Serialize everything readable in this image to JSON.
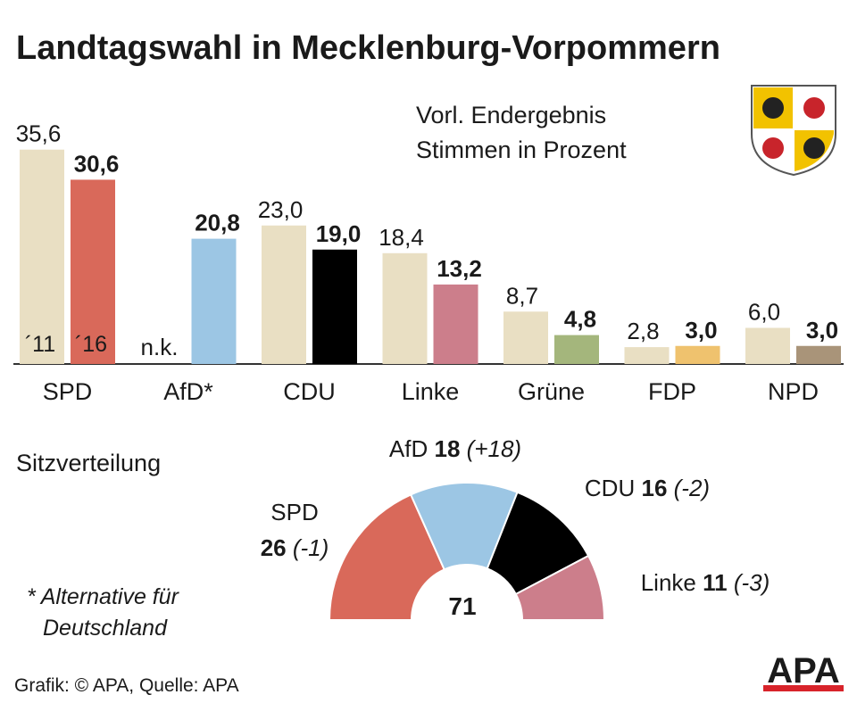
{
  "chart_data": [
    {
      "type": "bar",
      "title": "Landtagswahl in Mecklenburg-Vorpommern",
      "subtitle": [
        "Vorl. Endergebnis",
        "Stimmen in Prozent"
      ],
      "categories": [
        "SPD",
        "AfD*",
        "CDU",
        "Linke",
        "Grüne",
        "FDP",
        "NPD"
      ],
      "ylim": [
        0,
        36
      ],
      "series": [
        {
          "name": "´11",
          "color": "#e9dfc3",
          "values": [
            35.6,
            null,
            23.0,
            18.4,
            8.7,
            2.8,
            6.0
          ],
          "value_labels": [
            "35,6",
            "n.k.",
            "23,0",
            "18,4",
            "8,7",
            "2,8",
            "6,0"
          ]
        },
        {
          "name": "´16",
          "colors": [
            "#d9695a",
            "#9cc6e4",
            "#000000",
            "#cc7e8b",
            "#a4b67c",
            "#efc26e",
            "#a99479"
          ],
          "values": [
            30.6,
            20.8,
            19.0,
            13.2,
            4.8,
            3.0,
            3.0
          ],
          "value_labels": [
            "30,6",
            "20,8",
            "19,0",
            "13,2",
            "4,8",
            "3,0",
            "3,0"
          ]
        }
      ]
    },
    {
      "type": "pie",
      "title": "Sitzverteilung",
      "half": true,
      "total": 71,
      "categories": [
        "SPD",
        "AfD",
        "CDU",
        "Linke"
      ],
      "values": [
        26,
        18,
        16,
        11
      ],
      "colors": [
        "#d9695a",
        "#9cc6e4",
        "#000000",
        "#cc7e8b"
      ],
      "change": [
        -1,
        18,
        -2,
        -3
      ],
      "change_labels": [
        "(-1)",
        "(+18)",
        "(-2)",
        "(-3)"
      ]
    }
  ],
  "footnote": [
    "* Alternative für",
    "Deutschland"
  ],
  "source": "Grafik: © APA, Quelle: APA",
  "logo": "APA"
}
